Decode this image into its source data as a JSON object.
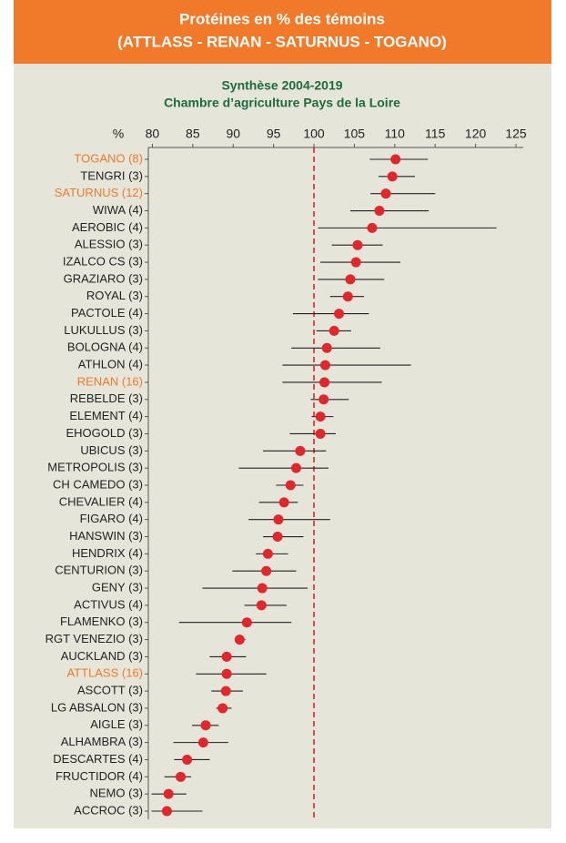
{
  "chart_data": {
    "type": "dot-range",
    "title": [
      "Protéines en % des témoins",
      "(ATTLASS - RENAN - SATURNUS - TOGANO)"
    ],
    "subtitle": [
      "Synthèse 2004-2019",
      "Chambre d’agriculture Pays de la Loire"
    ],
    "x_label": "%",
    "categories": [
      "TOGANO (8)",
      "TENGRI (3)",
      "SATURNUS (12)",
      "WIWA (4)",
      "AEROBIC (4)",
      "ALESSIO (3)",
      "IZALCO CS (3)",
      "GRAZIARO (3)",
      "ROYAL (3)",
      "PACTOLE (4)",
      "LUKULLUS (3)",
      "BOLOGNA (4)",
      "ATHLON (4)",
      "RENAN (16)",
      "REBELDE (3)",
      "ELEMENT (4)",
      "EHOGOLD (3)",
      "UBICUS (3)",
      "METROPOLIS (3)",
      "CH CAMEDO (3)",
      "CHEVALIER (4)",
      "FIGARO (4)",
      "HANSWIN (3)",
      "HENDRIX (4)",
      "CENTURION (3)",
      "GENY (3)",
      "ACTIVUS (4)",
      "FLAMENKO (3)",
      "RGT VENEZIO (3)",
      "AUCKLAND (3)",
      "ATTLASS (16)",
      "ASCOTT (3)",
      "LG ABSALON (3)",
      "AIGLE (3)",
      "ALHAMBRA (3)",
      "DESCARTES (4)",
      "FRUCTIDOR (4)",
      "NEMO (3)",
      "ACCROC (3)"
    ],
    "highlighted": [
      true,
      false,
      true,
      false,
      false,
      false,
      false,
      false,
      false,
      false,
      false,
      false,
      false,
      true,
      false,
      false,
      false,
      false,
      false,
      false,
      false,
      false,
      false,
      false,
      false,
      false,
      false,
      false,
      false,
      false,
      true,
      false,
      false,
      false,
      false,
      false,
      false,
      false,
      false
    ],
    "values": [
      110.1,
      109.7,
      108.9,
      108.1,
      107.2,
      105.4,
      105.2,
      104.5,
      104.2,
      103.1,
      102.5,
      101.6,
      101.4,
      101.3,
      101.2,
      100.8,
      100.8,
      98.3,
      97.8,
      97.1,
      96.3,
      95.6,
      95.5,
      94.3,
      94.1,
      93.6,
      93.5,
      91.7,
      90.8,
      89.2,
      89.2,
      89.1,
      88.7,
      86.6,
      86.3,
      84.3,
      83.5,
      82.0,
      81.8
    ],
    "low": [
      106.9,
      108.0,
      107.0,
      104.5,
      100.5,
      102.2,
      100.8,
      100.5,
      102.0,
      97.4,
      100.3,
      97.2,
      96.1,
      96.1,
      99.6,
      99.7,
      97.0,
      93.7,
      90.7,
      95.3,
      93.2,
      91.9,
      93.7,
      92.8,
      89.9,
      86.2,
      91.4,
      83.3,
      90.2,
      87.1,
      85.4,
      87.3,
      87.9,
      84.9,
      82.6,
      82.7,
      81.5,
      79.9,
      79.9
    ],
    "high": [
      114.1,
      112.5,
      115.0,
      114.2,
      122.6,
      108.5,
      110.7,
      108.7,
      106.2,
      106.8,
      104.6,
      108.2,
      112.0,
      108.4,
      104.3,
      102.4,
      102.7,
      101.5,
      101.8,
      98.7,
      98.0,
      102.0,
      98.7,
      96.8,
      97.8,
      99.2,
      96.6,
      97.2,
      91.5,
      91.6,
      94.1,
      91.2,
      89.8,
      88.2,
      89.4,
      87.1,
      84.8,
      84.2,
      86.2
    ],
    "xlim": [
      79.5,
      125
    ],
    "xticks": [
      80,
      85,
      90,
      95,
      100,
      105,
      110,
      115,
      120,
      125
    ],
    "reference_line": 100,
    "dot_color": "#e3262b",
    "bar_color": "#222222",
    "label_color": "#222222",
    "highlight_color": "#f07a2a",
    "reference_color": "#d7262b",
    "header_color": "#f07a2a",
    "subtitle_color": "#1d6b3a",
    "panel_color": "#e6e5da"
  }
}
